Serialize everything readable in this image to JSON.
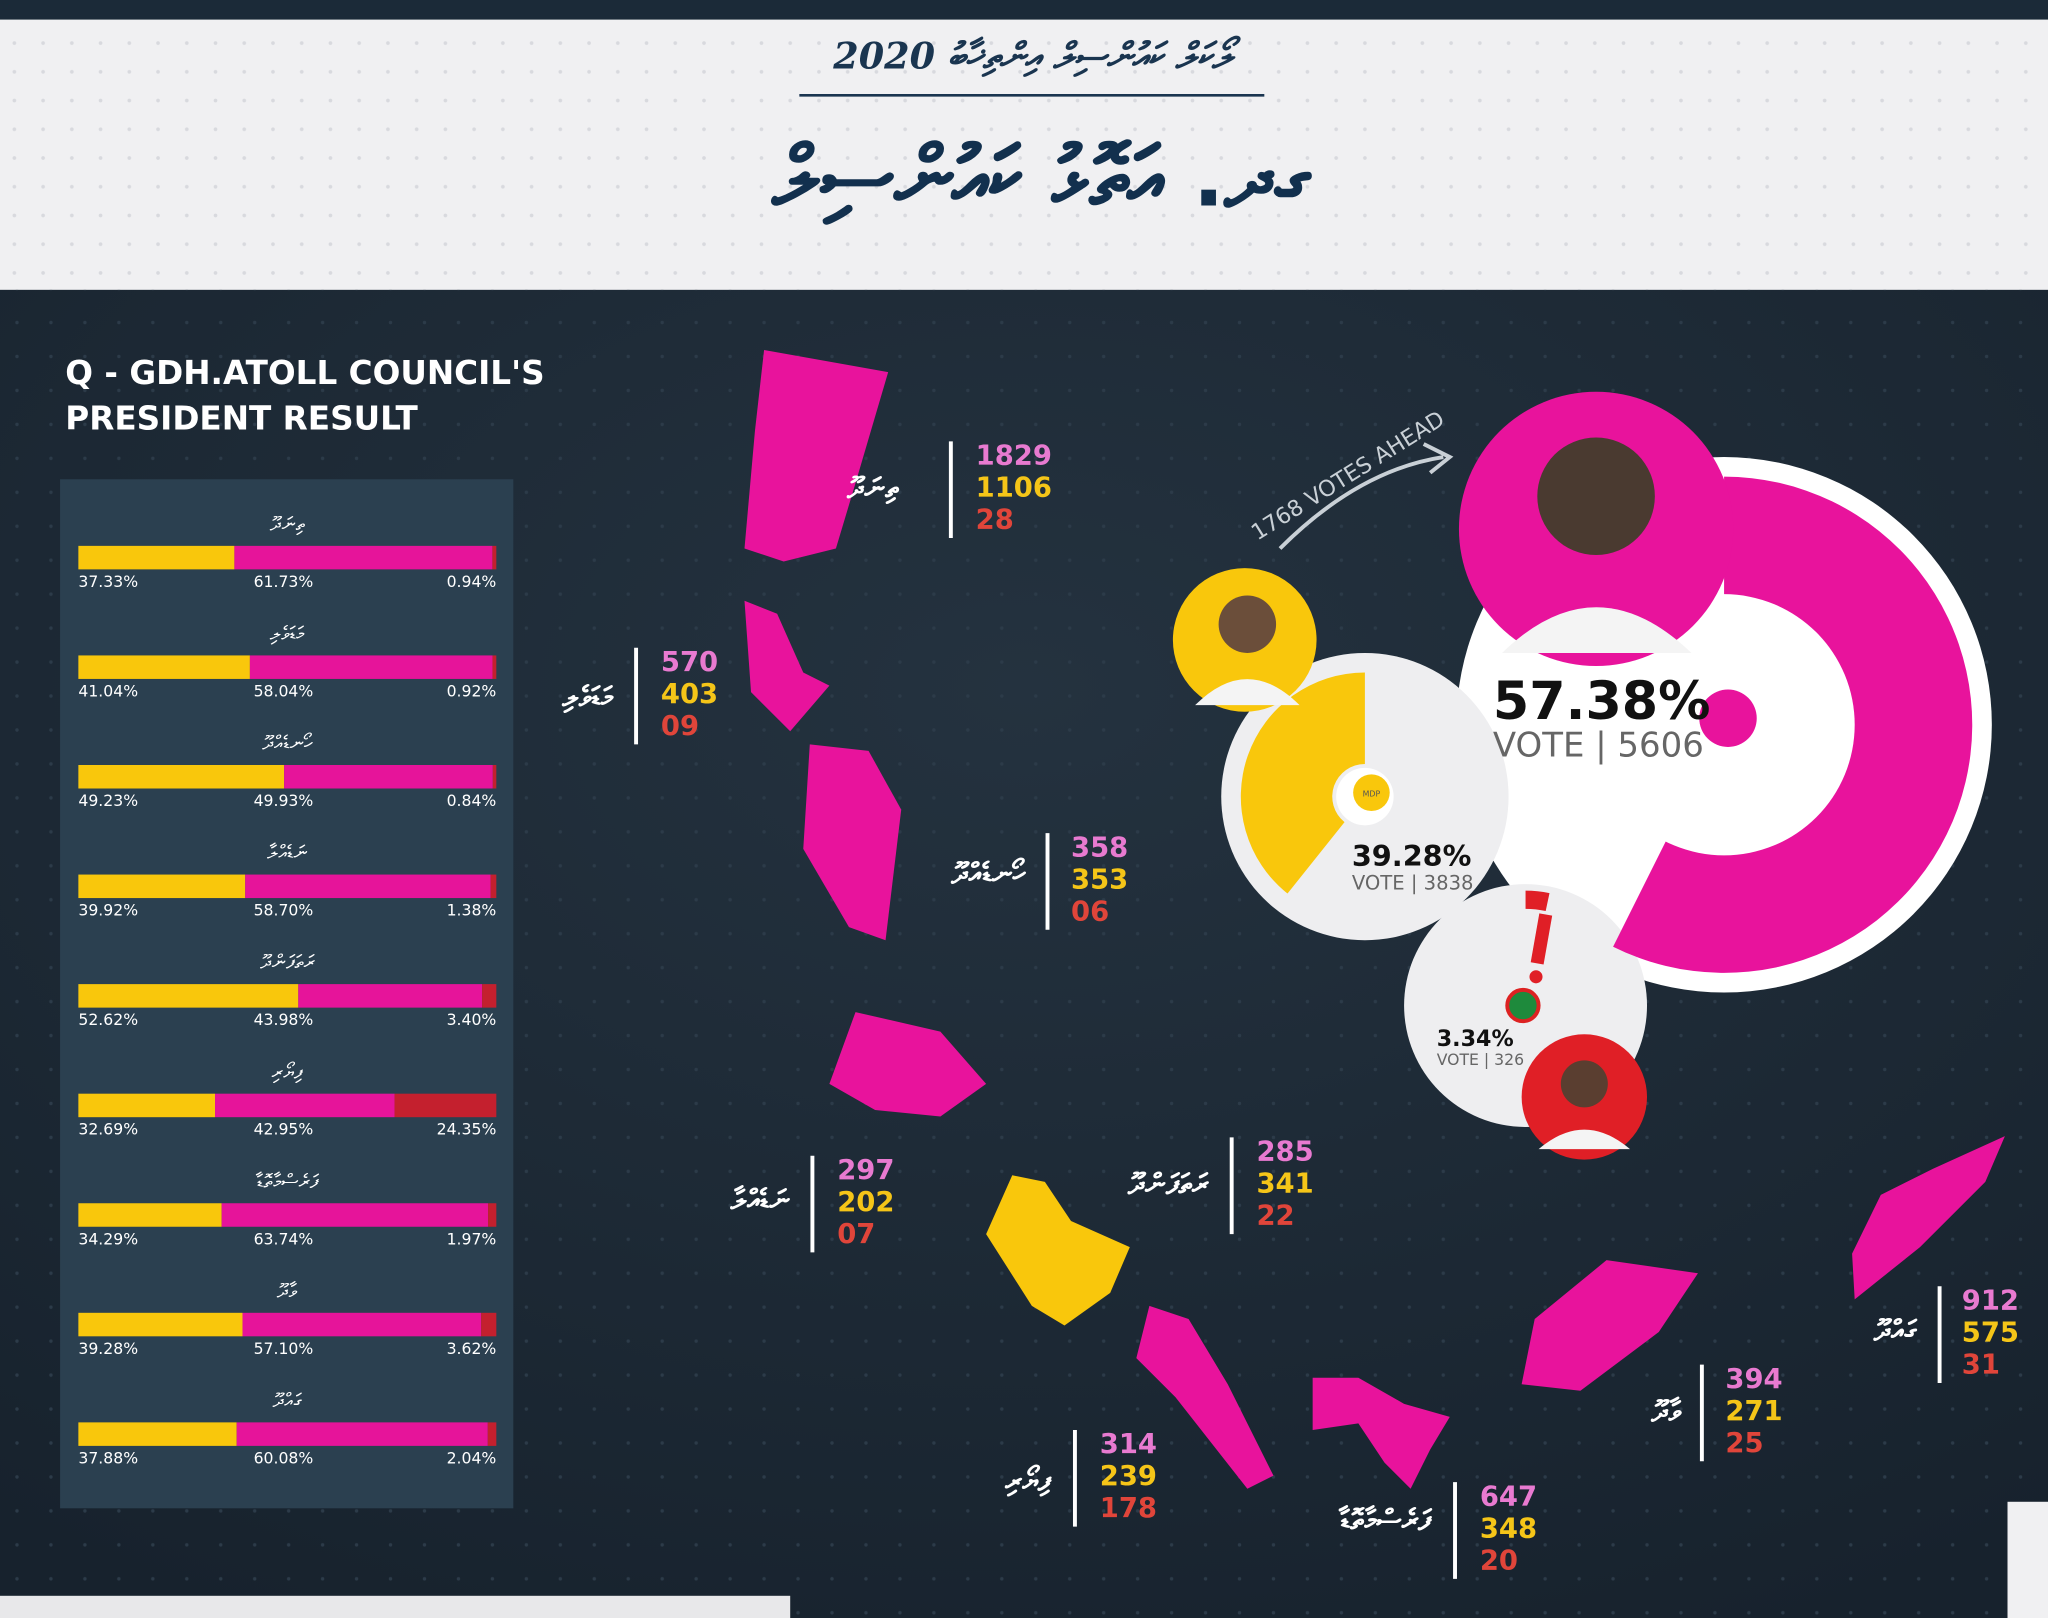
{
  "header": {
    "subtitle": "ލޯކަލް ކައުންސިލް އިންތިޚާބު 2020",
    "title": "ގދ. އަތޮޅު ކައުންސިލް"
  },
  "panel": {
    "title_lines": [
      "Q - GDH.ATOLL COUNCIL'S",
      "PRESIDENT RESULT"
    ]
  },
  "lead_label": "1768 VOTES AHEAD",
  "party_logo_text": "MDP",
  "candidates": [
    {
      "percent": 57.38,
      "percent_label": "57.38%",
      "votes_label": "VOTE | 5606",
      "color": "#e8139c"
    },
    {
      "percent": 39.28,
      "percent_label": "39.28%",
      "votes_label": "VOTE | 3838",
      "color": "#f9c70c"
    },
    {
      "percent": 3.34,
      "percent_label": "3.34%",
      "votes_label": "VOTE | 326",
      "color": "#e01f26"
    }
  ],
  "share_colors": [
    "#f9c70c",
    "#e6149a",
    "#c4202e"
  ],
  "vote_colors": [
    "#e87ad0",
    "#f5c518",
    "#e0453a"
  ],
  "islands": [
    {
      "name": "ތިނަދޫ",
      "votes": [
        "1829",
        "1106",
        "28"
      ],
      "shares": [
        37.33,
        61.73,
        0.94
      ],
      "share_labels": [
        "37.33%",
        "61.73%",
        "0.94%"
      ]
    },
    {
      "name": "މަޑަވެލި",
      "votes": [
        "570",
        "403",
        "09"
      ],
      "shares": [
        41.04,
        58.04,
        0.92
      ],
      "share_labels": [
        "41.04%",
        "58.04%",
        "0.92%"
      ]
    },
    {
      "name": "ހޯނޑެއްދޫ",
      "votes": [
        "358",
        "353",
        "06"
      ],
      "shares": [
        49.23,
        49.93,
        0.84
      ],
      "share_labels": [
        "49.23%",
        "49.93%",
        "0.84%"
      ]
    },
    {
      "name": "ނަޑެއްލާ",
      "votes": [
        "297",
        "202",
        "07"
      ],
      "shares": [
        39.92,
        58.7,
        1.38
      ],
      "share_labels": [
        "39.92%",
        "58.70%",
        "1.38%"
      ]
    },
    {
      "name": "ރަތަފަންދޫ",
      "votes": [
        "285",
        "341",
        "22"
      ],
      "shares": [
        52.62,
        43.98,
        3.4
      ],
      "share_labels": [
        "52.62%",
        "43.98%",
        "3.40%"
      ]
    },
    {
      "name": "ފިޔޯރި",
      "votes": [
        "314",
        "239",
        "178"
      ],
      "shares": [
        32.69,
        42.95,
        24.35
      ],
      "share_labels": [
        "32.69%",
        "42.95%",
        "24.35%"
      ]
    },
    {
      "name": "ފަރެސްމާތޮޑާ",
      "votes": [
        "647",
        "348",
        "20"
      ],
      "shares": [
        34.29,
        63.74,
        1.97
      ],
      "share_labels": [
        "34.29%",
        "63.74%",
        "1.97%"
      ]
    },
    {
      "name": "ވާދޫ",
      "votes": [
        "394",
        "271",
        "25"
      ],
      "shares": [
        39.28,
        57.1,
        3.62
      ],
      "share_labels": [
        "39.28%",
        "57.10%",
        "3.62%"
      ]
    },
    {
      "name": "ގައްދޫ",
      "votes": [
        "912",
        "575",
        "31"
      ],
      "shares": [
        37.88,
        60.08,
        2.04
      ],
      "share_labels": [
        "37.88%",
        "60.08%",
        "2.04%"
      ]
    }
  ]
}
